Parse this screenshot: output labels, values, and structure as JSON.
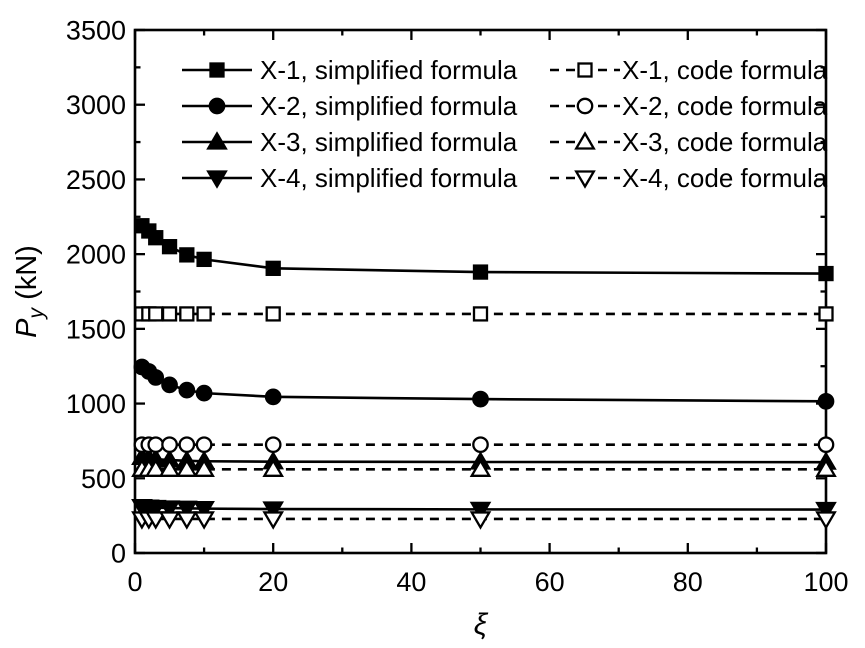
{
  "chart_data": {
    "type": "line",
    "title": "",
    "xlabel": "ξ",
    "ylabel": "P_y (kN)",
    "xlim": [
      0,
      100
    ],
    "ylim": [
      0,
      3500
    ],
    "grid": false,
    "colors": {
      "foreground": "#000000",
      "background": "#ffffff"
    },
    "x_axis": {
      "major_ticks": [
        0,
        20,
        40,
        60,
        80,
        100
      ],
      "minor_ticks": [
        10,
        30,
        50,
        70,
        90
      ],
      "tick_labels": [
        "0",
        "20",
        "40",
        "60",
        "80",
        "100"
      ]
    },
    "y_axis": {
      "major_ticks": [
        0,
        500,
        1000,
        1500,
        2000,
        2500,
        3000,
        3500
      ],
      "minor_ticks": [
        250,
        750,
        1250,
        1750,
        2250,
        2750,
        3250
      ],
      "tick_labels": [
        "0",
        "500",
        "1000",
        "1500",
        "2000",
        "2500",
        "3000",
        "3500"
      ]
    },
    "x": [
      1,
      2,
      3,
      5,
      7.5,
      10,
      20,
      50,
      100
    ],
    "series": [
      {
        "name": "X-1, simplified formula",
        "marker": "square-filled",
        "linestyle": "solid",
        "values": [
          2190,
          2155,
          2110,
          2050,
          1995,
          1965,
          1905,
          1880,
          1870
        ]
      },
      {
        "name": "X-2, simplified formula",
        "marker": "circle-filled",
        "linestyle": "solid",
        "values": [
          1245,
          1215,
          1175,
          1125,
          1090,
          1070,
          1045,
          1030,
          1015
        ]
      },
      {
        "name": "X-3, simplified formula",
        "marker": "triangle-up-filled",
        "linestyle": "solid",
        "values": [
          640,
          634,
          628,
          622,
          617,
          614,
          611,
          609,
          608
        ]
      },
      {
        "name": "X-4, simplified formula",
        "marker": "triangle-down-filled",
        "linestyle": "solid",
        "values": [
          310,
          307,
          304,
          301,
          299,
          297,
          294,
          292,
          291
        ]
      },
      {
        "name": "X-1, code formula",
        "marker": "square-open",
        "linestyle": "dashed",
        "values": [
          1600,
          1600,
          1600,
          1600,
          1600,
          1600,
          1600,
          1600,
          1600
        ]
      },
      {
        "name": "X-2, code formula",
        "marker": "circle-open",
        "linestyle": "dashed",
        "values": [
          725,
          725,
          725,
          725,
          725,
          725,
          725,
          725,
          725
        ]
      },
      {
        "name": "X-3, code formula",
        "marker": "triangle-up-open",
        "linestyle": "dashed",
        "values": [
          560,
          560,
          560,
          560,
          560,
          560,
          560,
          560,
          560
        ]
      },
      {
        "name": "X-4, code formula",
        "marker": "triangle-down-open",
        "linestyle": "dashed",
        "values": [
          228,
          228,
          228,
          228,
          228,
          228,
          228,
          228,
          228
        ]
      }
    ],
    "legend": {
      "position": "top-inside",
      "columns": 2,
      "left_column_labels": [
        "X-1, simplified formula",
        "X-2, simplified formula",
        "X-3, simplified formula",
        "X-4, simplified formula"
      ],
      "right_column_labels": [
        "X-1, code formula",
        "X-2, code formula",
        "X-3, code formula",
        "X-4, code formula"
      ]
    }
  }
}
